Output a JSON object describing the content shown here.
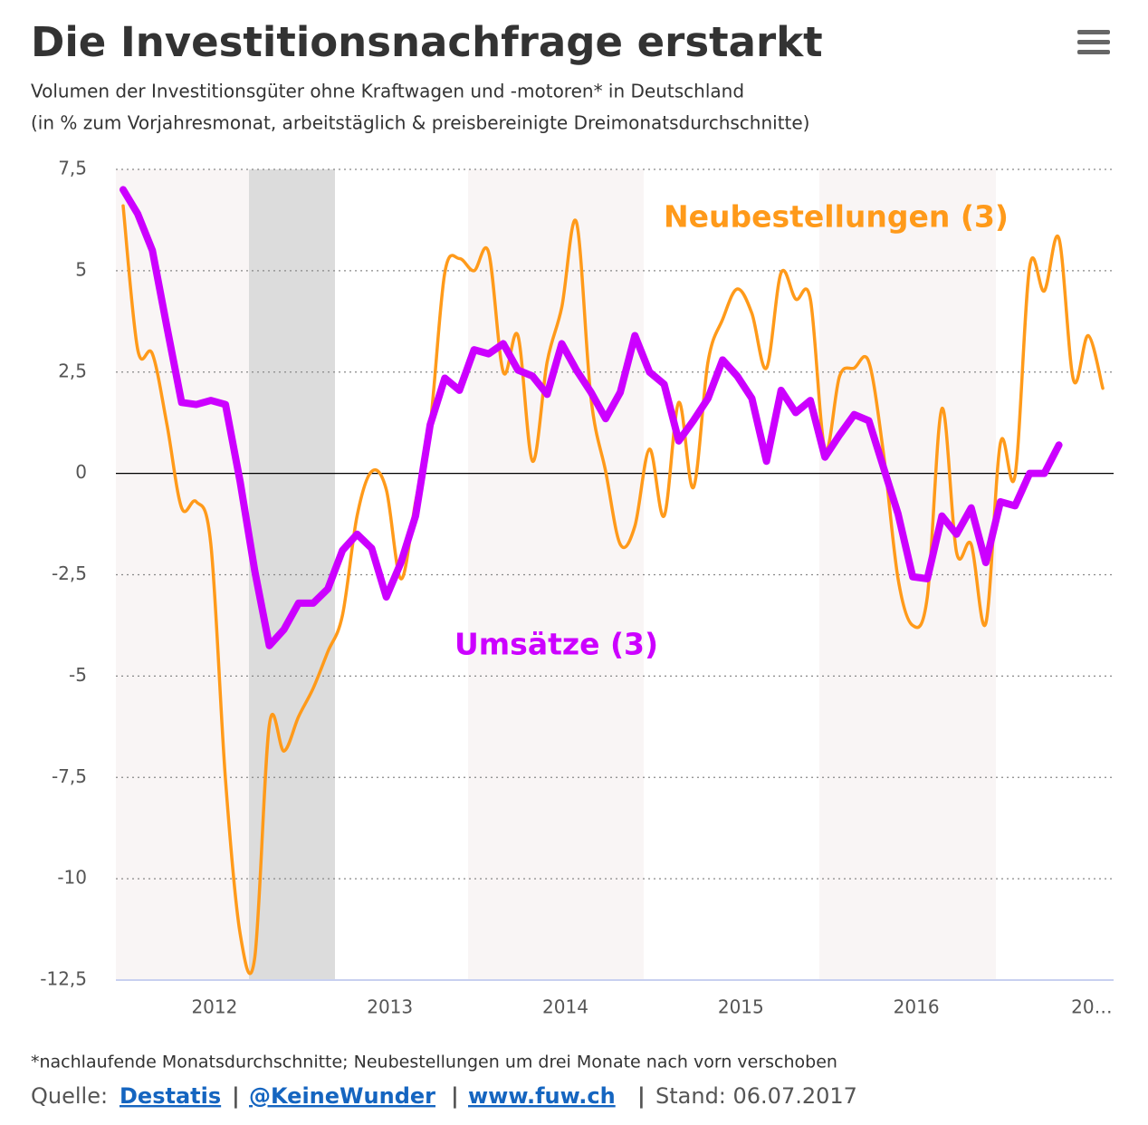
{
  "title": "Die Investitionsnachfrage erstarkt",
  "subtitle": [
    "Volumen der Investitionsgüter ohne Kraftwagen und -motoren* in Deutschland",
    "(in % zum Vorjahresmonat, arbeitstäglich & preisbereinigte Dreimonatsdurchschnitte)"
  ],
  "footnote": "*nachlaufende Monatsdurchschnitte; Neubestellungen um drei Monate nach vorn verschoben",
  "source": {
    "prefix": "Quelle:",
    "links": [
      "Destatis",
      "@KeineWunder",
      "www.fuw.ch"
    ],
    "separator": "|",
    "stand": "Stand: 06.07.2017"
  },
  "chart_data": {
    "type": "line",
    "categories": [
      null,
      null,
      null,
      null,
      null,
      null,
      "2012",
      null,
      null,
      null,
      null,
      null,
      null,
      null,
      null,
      null,
      null,
      null,
      "2013",
      null,
      null,
      null,
      null,
      null,
      null,
      null,
      null,
      null,
      null,
      null,
      "2014",
      null,
      null,
      null,
      null,
      null,
      null,
      null,
      null,
      null,
      null,
      null,
      "2015",
      null,
      null,
      null,
      null,
      null,
      null,
      null,
      null,
      null,
      null,
      null,
      "2016",
      null,
      null,
      null,
      null,
      null,
      null,
      null,
      null,
      null,
      null,
      null,
      "20…",
      null
    ],
    "series": [
      {
        "name": "Neubestellungen (3)",
        "color": "#ff9a1a",
        "smooth": true,
        "values": [
          6.6,
          3.05,
          2.95,
          1.2,
          -0.85,
          -0.7,
          -1.75,
          -7.55,
          -11.35,
          -11.95,
          -6.2,
          -6.85,
          -6.0,
          -5.3,
          -4.4,
          -3.5,
          -1.05,
          0.05,
          -0.4,
          -2.6,
          -0.7,
          1.2,
          4.95,
          5.3,
          5.0,
          5.45,
          2.5,
          3.4,
          0.3,
          2.75,
          4.1,
          6.2,
          1.85,
          0.05,
          -1.75,
          -1.3,
          0.6,
          -1.05,
          1.75,
          -0.35,
          2.75,
          3.8,
          4.55,
          3.95,
          2.6,
          4.95,
          4.3,
          4.3,
          0.6,
          2.4,
          2.6,
          2.75,
          0.5,
          -2.6,
          -3.75,
          -3.05,
          1.6,
          -1.95,
          -1.75,
          -3.7,
          0.75,
          -0.05,
          5.1,
          4.5,
          5.8,
          2.3,
          3.4,
          2.1
        ]
      },
      {
        "name": "Umsätze (3)",
        "color": "#cc00ff",
        "smooth": false,
        "values": [
          7.0,
          6.4,
          5.5,
          3.6,
          1.75,
          1.7,
          1.8,
          1.7,
          -0.2,
          -2.4,
          -4.25,
          -3.85,
          -3.2,
          -3.2,
          -2.85,
          -1.9,
          -1.5,
          -1.85,
          -3.05,
          -2.2,
          -1.05,
          1.2,
          2.35,
          2.05,
          3.05,
          2.95,
          3.2,
          2.55,
          2.4,
          1.95,
          3.2,
          2.55,
          2.0,
          1.35,
          2.0,
          3.4,
          2.5,
          2.2,
          0.8,
          1.3,
          1.85,
          2.8,
          2.4,
          1.85,
          0.3,
          2.05,
          1.5,
          1.8,
          0.4,
          0.95,
          1.45,
          1.3,
          0.15,
          -1.0,
          -2.55,
          -2.6,
          -1.05,
          -1.5,
          -0.85,
          -2.2,
          -0.7,
          -0.8,
          0,
          0,
          0.7,
          null,
          null,
          null
        ]
      }
    ],
    "ylim": [
      -12.5,
      7.5
    ],
    "yticks": [
      {
        "value": -12.5,
        "label": "-12,5"
      },
      -10,
      {
        "value": -7.5,
        "label": "-7,5"
      },
      -5,
      {
        "value": -2.5,
        "label": "-2,5"
      },
      0,
      {
        "value": 2.5,
        "label": "2,5"
      },
      5,
      {
        "value": 7.5,
        "label": "7,5"
      }
    ],
    "grid": true
  }
}
